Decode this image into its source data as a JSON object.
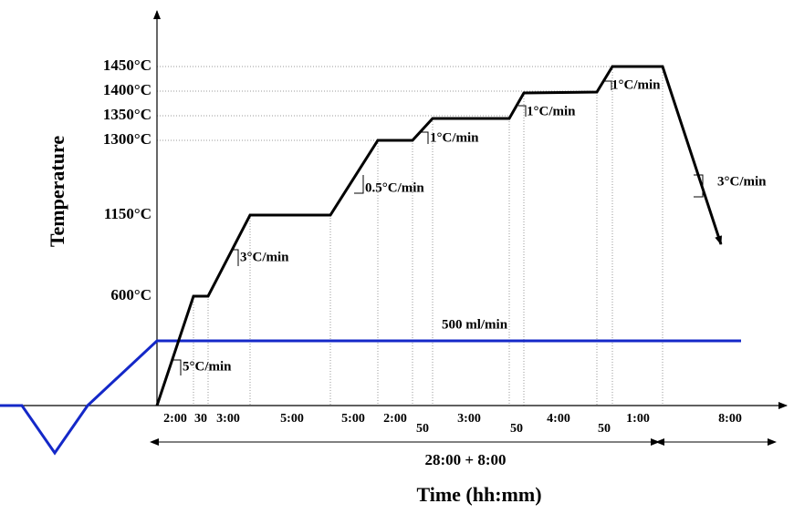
{
  "y_axis": {
    "title": "Temperature",
    "labels": [
      "1450°C",
      "1400°C",
      "1350°C",
      "1300°C",
      "1150°C",
      "600°C"
    ]
  },
  "x_axis": {
    "title": "Time (hh:mm)",
    "durations": [
      "2:00",
      "30",
      "3:00",
      "5:00",
      "5:00",
      "2:00",
      "50",
      "3:00",
      "50",
      "4:00",
      "50",
      "1:00",
      "8:00"
    ],
    "total": "28:00 + 8:00"
  },
  "rates": [
    "5°C/min",
    "3°C/min",
    "0.5°C/min",
    "1°C/min",
    "1°C/min",
    "1°C/min",
    "3°C/min"
  ],
  "flow": "500 ml/min"
}
